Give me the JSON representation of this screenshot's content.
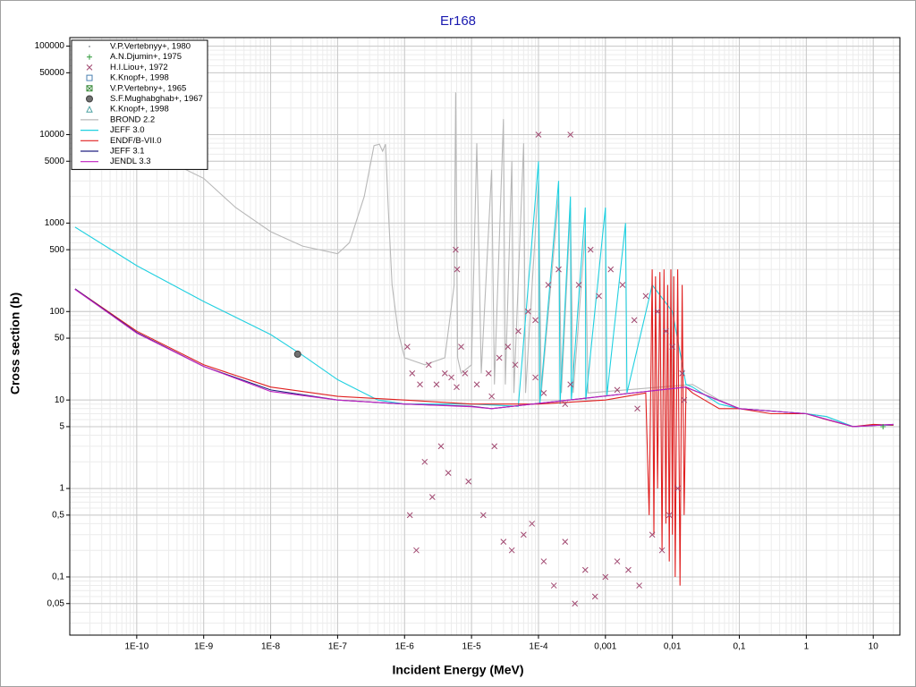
{
  "chart_data": {
    "type": "scatter",
    "title": "Er168",
    "x_label": "Incident Energy (MeV)",
    "y_label": "Cross section (b)",
    "xscale": "log",
    "yscale": "log",
    "grid": true,
    "legend": "upper left",
    "xlim": [
      1e-11,
      25
    ],
    "ylim": [
      0.022,
      125000
    ],
    "xticks": [
      {
        "value": 1e-10,
        "label": "1E-10"
      },
      {
        "value": 1e-09,
        "label": "1E-9"
      },
      {
        "value": 1e-08,
        "label": "1E-8"
      },
      {
        "value": 1e-07,
        "label": "1E-7"
      },
      {
        "value": 1e-06,
        "label": "1E-6"
      },
      {
        "value": 1e-05,
        "label": "1E-5"
      },
      {
        "value": 0.0001,
        "label": "1E-4"
      },
      {
        "value": 0.001,
        "label": "0,001"
      },
      {
        "value": 0.01,
        "label": "0,01"
      },
      {
        "value": 0.1,
        "label": "0,1"
      },
      1,
      10
    ],
    "yticks": [
      100000,
      50000,
      10000,
      5000,
      1000,
      500,
      100,
      50,
      10,
      5,
      1,
      {
        "value": 0.5,
        "label": "0,5"
      },
      {
        "value": 0.1,
        "label": "0,1"
      },
      {
        "value": 0.05,
        "label": "0,05"
      }
    ],
    "series": [
      {
        "name": "V.P.Vertebnyy+, 1980",
        "color": "#9aa0a6",
        "marker": "dot",
        "x": [],
        "y": []
      },
      {
        "name": "A.N.Djumin+, 1975",
        "color": "#2e9a3a",
        "marker": "plus",
        "x": [
          14
        ],
        "y": [
          5
        ]
      },
      {
        "name": "H.I.Liou+, 1972",
        "color": "#a04870",
        "marker": "x",
        "x": [
          1.1e-06,
          1.2e-06,
          1.3e-06,
          1.5e-06,
          1.7e-06,
          2e-06,
          2.3e-06,
          2.6e-06,
          3e-06,
          3.5e-06,
          4e-06,
          4.5e-06,
          5e-06,
          5.8e-06,
          6.1e-06,
          7e-06,
          8e-06,
          9e-06,
          1.2e-05,
          1.5e-05,
          1.8e-05,
          2.2e-05,
          2.6e-05,
          3e-05,
          3.5e-05,
          4e-05,
          5e-05,
          6e-05,
          7e-05,
          8e-05,
          9e-05,
          0.0001,
          0.00012,
          0.00014,
          0.00017,
          0.0002,
          0.00025,
          0.0003,
          0.00035,
          0.0004,
          0.0005,
          0.0006,
          0.0007,
          0.0008,
          0.001,
          0.0012,
          0.0015,
          0.0018,
          0.0022,
          0.0027,
          0.0032,
          0.004,
          0.005,
          0.006,
          0.007,
          0.008,
          0.009,
          0.01,
          0.012,
          0.014,
          0.015,
          0.0003,
          0.00012,
          9e-05,
          6e-06,
          0.00025,
          4.5e-05,
          2e-05,
          0.0015,
          0.003
        ],
        "y": [
          40,
          0.5,
          20,
          0.2,
          15,
          2,
          25,
          0.8,
          15,
          3,
          20,
          1.5,
          18,
          500,
          300,
          40,
          20,
          1.2,
          15,
          0.5,
          20,
          3,
          30,
          0.25,
          40,
          0.2,
          60,
          0.3,
          100,
          0.4,
          80,
          10000,
          0.15,
          200,
          0.08,
          300,
          0.25,
          10000,
          0.05,
          200,
          0.12,
          500,
          0.06,
          150,
          0.1,
          300,
          0.15,
          200,
          0.12,
          80,
          0.08,
          150,
          0.3,
          100,
          0.2,
          60,
          0.5,
          40,
          1,
          20,
          10,
          15,
          12,
          18,
          14,
          9,
          25,
          11,
          13,
          8
        ]
      },
      {
        "name": "K.Knopf+, 1998",
        "color": "#4a7fb0",
        "marker": "square",
        "x": [],
        "y": []
      },
      {
        "name": "V.P.Vertebny+, 1965",
        "color": "#3a8a3a",
        "marker": "squarex",
        "x": [],
        "y": []
      },
      {
        "name": "S.F.Mughabghab+, 1967",
        "color": "#707070",
        "marker": "circle",
        "x": [
          2.53e-08
        ],
        "y": [
          33
        ]
      },
      {
        "name": "K.Knopf+, 1998",
        "color": "#4aa0a0",
        "marker": "triangle",
        "x": [],
        "y": []
      },
      {
        "name": "BROND 2.2",
        "color": "#b8b8b8",
        "marker": "line",
        "x": [
          3e-10,
          1e-09,
          3e-09,
          1e-08,
          3e-08,
          1e-07,
          1.5e-07,
          2.5e-07,
          3.5e-07,
          4.2e-07,
          4.7e-07,
          5.2e-07,
          5.7e-07,
          6.5e-07,
          8e-07,
          1e-06,
          2e-06,
          4e-06,
          5.5e-06,
          5.8e-06,
          6.2e-06,
          7e-06,
          1e-05,
          1.2e-05,
          1.4e-05,
          2e-05,
          2.2e-05,
          3e-05,
          3.2e-05,
          4e-05,
          4.3e-05,
          6e-05,
          6.4e-05,
          0.0001,
          0.00011,
          0.0002,
          0.00022,
          0.0003,
          0.00033,
          0.0005,
          0.00055,
          0.02,
          0.05,
          0.1,
          0.3,
          1,
          2,
          5,
          10,
          20
        ],
        "y": [
          5000,
          3200,
          1500,
          800,
          550,
          450,
          600,
          2000,
          7500,
          7800,
          6500,
          7800,
          1500,
          200,
          60,
          30,
          25,
          30,
          200,
          30000,
          30,
          20,
          25,
          8000,
          20,
          4000,
          15,
          15000,
          15,
          5000,
          12,
          8000,
          12,
          3000,
          12,
          2000,
          12,
          1500,
          12,
          800,
          12,
          15,
          10,
          8,
          7.5,
          7,
          6.5,
          5,
          5.2,
          5.2
        ]
      },
      {
        "name": "JEFF 3.0",
        "color": "#20d0e0",
        "marker": "line",
        "x": [
          1.2e-11,
          1e-10,
          1e-09,
          1e-08,
          3e-08,
          1e-07,
          2e-07,
          4e-07,
          1e-06,
          1e-05,
          5e-05,
          0.0001,
          0.000105,
          0.0002,
          0.00021,
          0.0003,
          0.00031,
          0.0005,
          0.00051,
          0.001,
          0.00105,
          0.002,
          0.0021,
          0.005,
          0.01,
          0.016,
          0.02,
          0.05,
          0.1,
          0.3,
          1,
          2,
          5,
          10,
          20
        ],
        "y": [
          900,
          330,
          130,
          55,
          32,
          17,
          13,
          10,
          9,
          9,
          8.5,
          5000,
          9,
          3000,
          9,
          2000,
          10,
          1500,
          10,
          1500,
          11,
          1000,
          12,
          200,
          100,
          15,
          14,
          9,
          8,
          7.5,
          7,
          6.5,
          5,
          5.2,
          5.2
        ]
      },
      {
        "name": "ENDF/B-VII.0",
        "color": "#e02020",
        "marker": "line",
        "x": [
          1.2e-11,
          1e-10,
          1e-09,
          1e-08,
          1e-07,
          1e-06,
          1e-05,
          0.0001,
          0.001,
          0.004,
          0.0045,
          0.005,
          0.0053,
          0.0056,
          0.006,
          0.0065,
          0.007,
          0.0075,
          0.008,
          0.0085,
          0.009,
          0.0095,
          0.01,
          0.0105,
          0.011,
          0.012,
          0.013,
          0.014,
          0.015,
          0.016,
          0.02,
          0.05,
          0.1,
          0.3,
          1,
          2,
          5,
          10,
          20
        ],
        "y": [
          180,
          60,
          25,
          14,
          11,
          10,
          9,
          9,
          10,
          12,
          0.5,
          300,
          0.3,
          250,
          1,
          280,
          0.2,
          300,
          0.4,
          200,
          0.15,
          300,
          0.3,
          250,
          0.1,
          300,
          0.08,
          200,
          0.5,
          14,
          12,
          8,
          8,
          7,
          7,
          6,
          5,
          5.3,
          5.2
        ]
      },
      {
        "name": "JEFF 3.1",
        "color": "#202080",
        "marker": "line",
        "x": [
          1.2e-11,
          1e-10,
          1e-09,
          1e-08,
          1e-07,
          1e-06,
          1e-05,
          2e-05,
          0.016,
          0.02,
          0.1,
          1,
          5,
          20
        ],
        "y": [
          180,
          58,
          24,
          13,
          10,
          9,
          8.5,
          8,
          14,
          13,
          8,
          7,
          5,
          5.3
        ]
      },
      {
        "name": "JENDL 3.3",
        "color": "#c020c0",
        "marker": "line",
        "x": [
          1.2e-11,
          1e-10,
          1e-09,
          1e-08,
          1e-07,
          1e-06,
          1e-05,
          2e-05,
          0.016,
          0.02,
          0.1,
          1,
          5,
          20
        ],
        "y": [
          178,
          57,
          24,
          12.5,
          10,
          9,
          8.4,
          8,
          14,
          13,
          8,
          7,
          5,
          5.3
        ]
      }
    ]
  }
}
